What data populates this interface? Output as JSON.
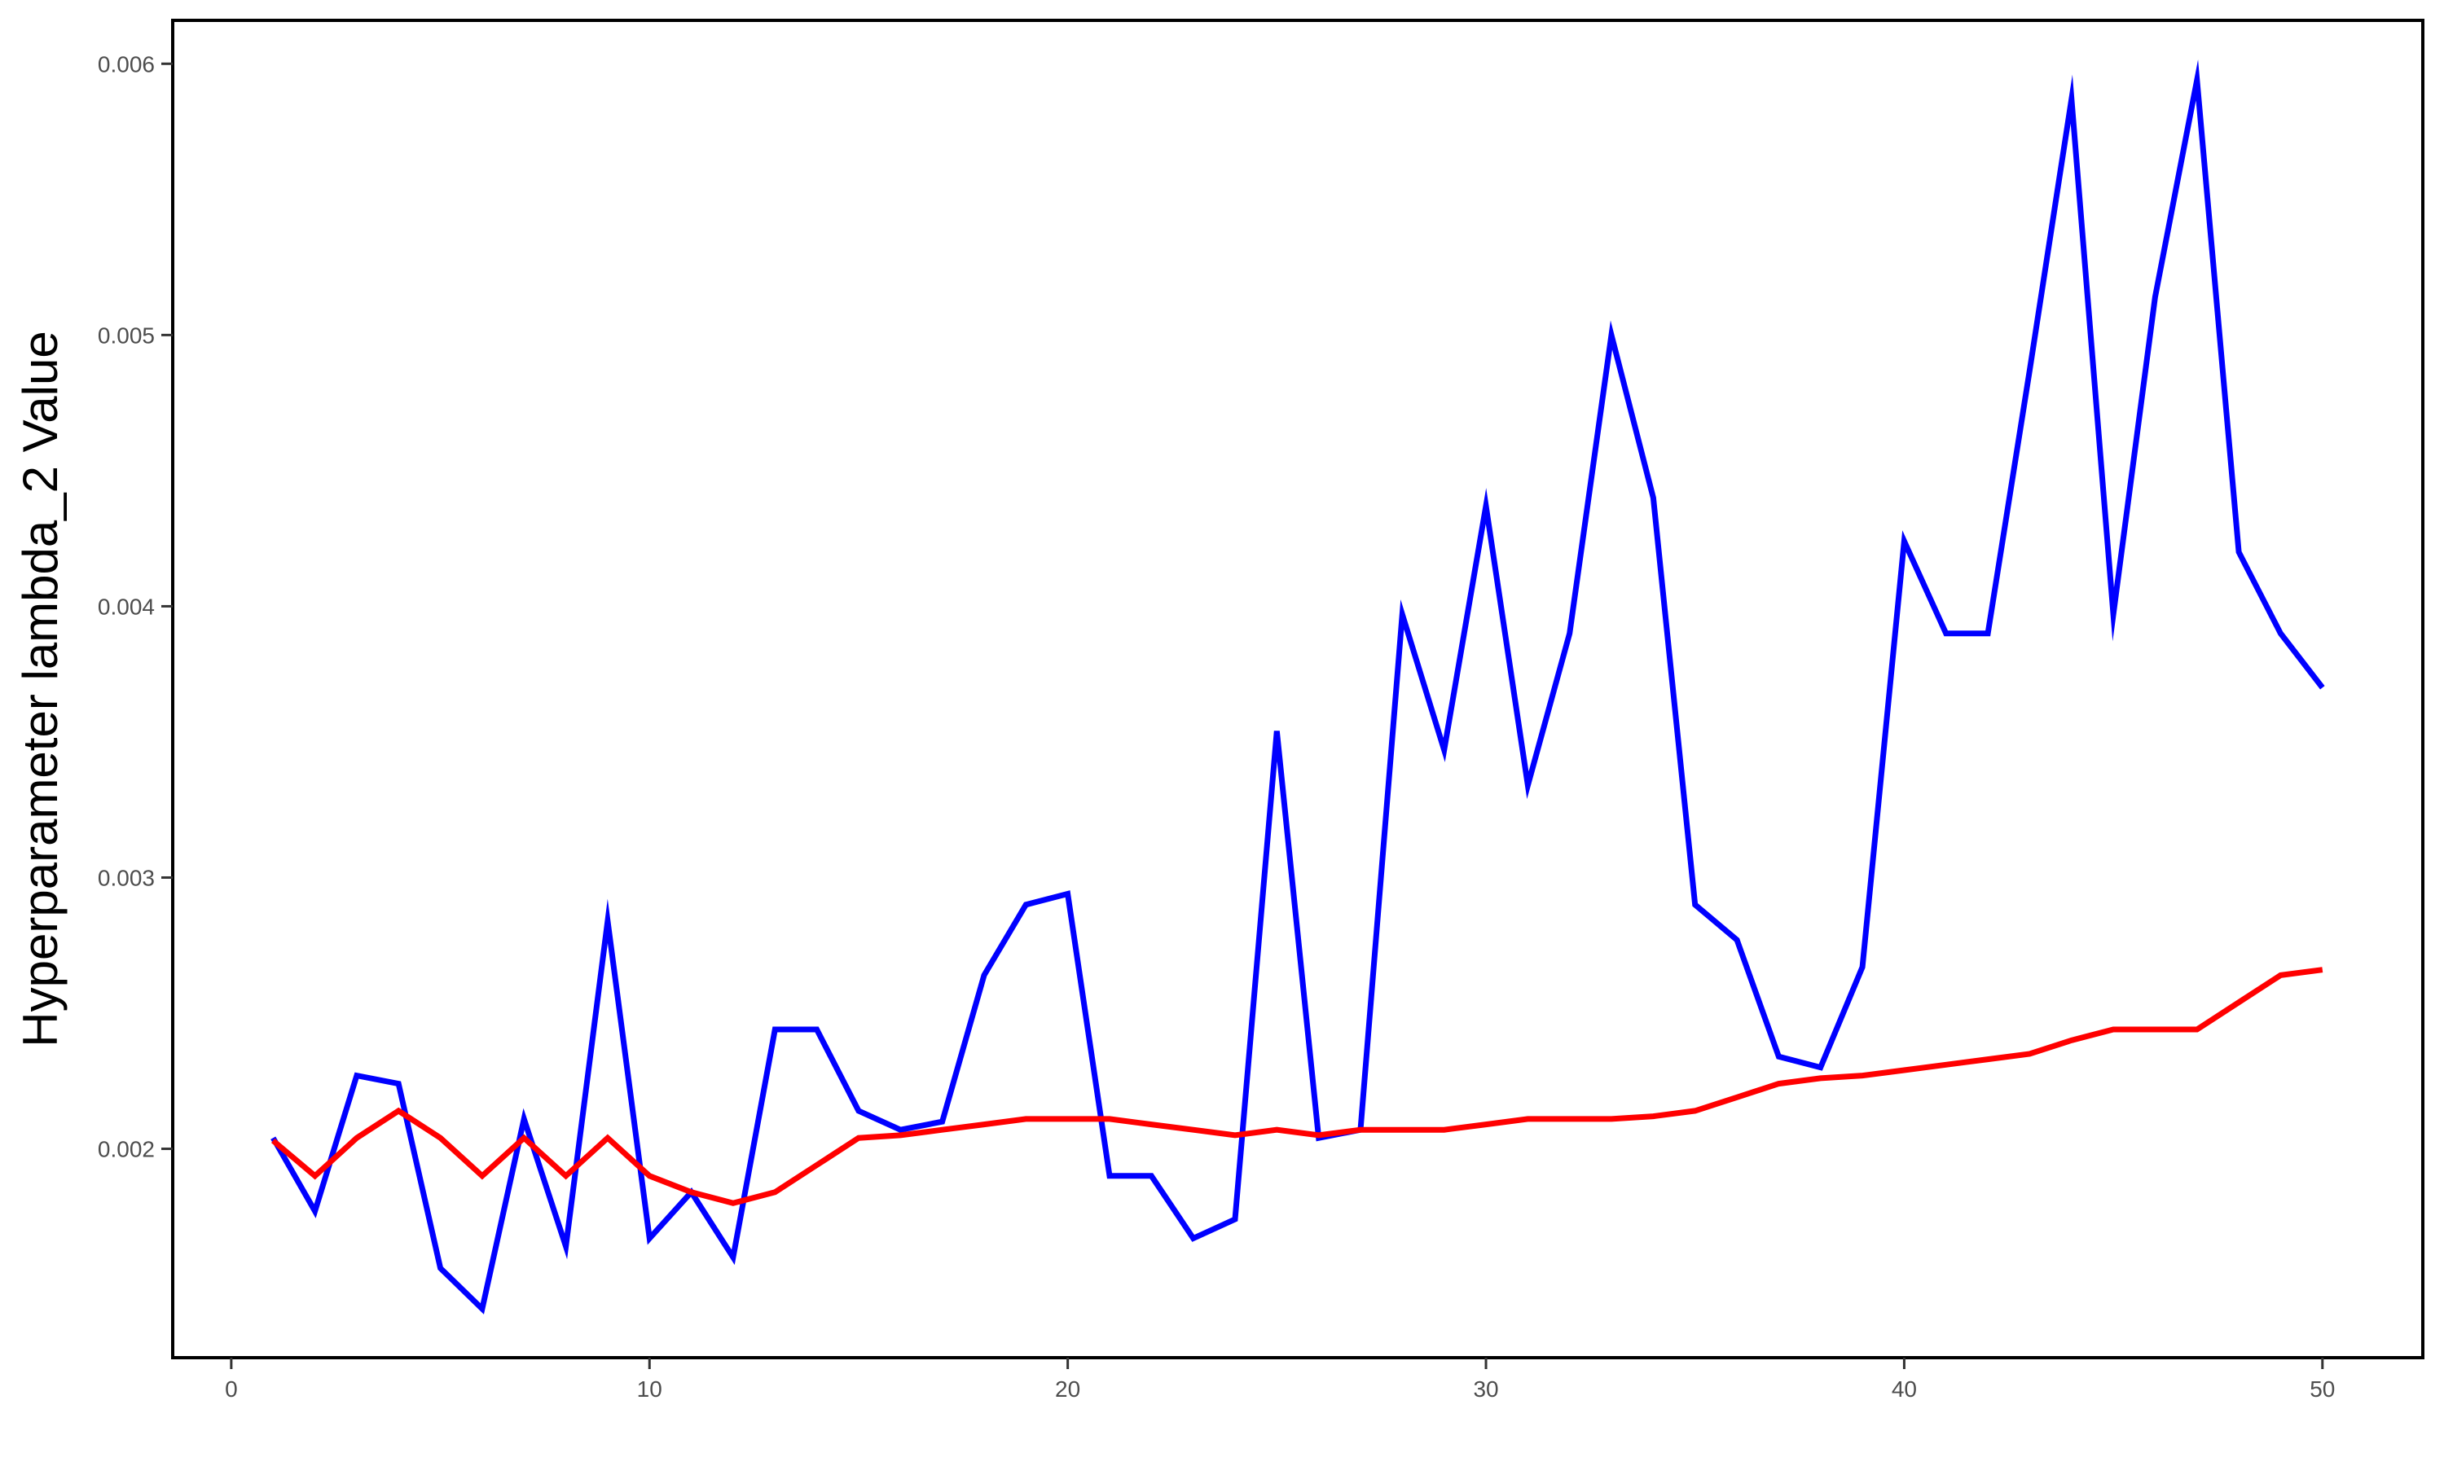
{
  "chart_data": {
    "type": "line",
    "title": "",
    "xlabel": "",
    "ylabel": "Hyperparameter lambda_2 Value",
    "xlim": [
      -1.4,
      52.4
    ],
    "ylim": [
      0.00123,
      0.00616
    ],
    "x_ticks": [
      0,
      10,
      20,
      30,
      40,
      50
    ],
    "x_tick_labels": [
      "0",
      "10",
      "20",
      "30",
      "40",
      "50"
    ],
    "y_ticks": [
      0.002,
      0.003,
      0.004,
      0.005,
      0.006
    ],
    "y_tick_labels": [
      "0.002",
      "0.003",
      "0.004",
      "0.005",
      "0.006"
    ],
    "grid": false,
    "legend": "none",
    "x": [
      1,
      2,
      3,
      4,
      5,
      6,
      7,
      8,
      9,
      10,
      11,
      12,
      13,
      14,
      15,
      16,
      17,
      18,
      19,
      20,
      21,
      22,
      23,
      24,
      25,
      26,
      27,
      28,
      29,
      30,
      31,
      32,
      33,
      34,
      35,
      36,
      37,
      38,
      39,
      40,
      41,
      42,
      43,
      44,
      45,
      46,
      47,
      48,
      49,
      50
    ],
    "series": [
      {
        "color": "#0000ff",
        "values": [
          0.00204,
          0.00177,
          0.00227,
          0.00224,
          0.00156,
          0.00141,
          0.00211,
          0.00164,
          0.00284,
          0.00167,
          0.00184,
          0.0016,
          0.00244,
          0.00244,
          0.00214,
          0.00207,
          0.0021,
          0.00264,
          0.0029,
          0.00294,
          0.0019,
          0.0019,
          0.00167,
          0.00174,
          0.00354,
          0.00204,
          0.00207,
          0.00397,
          0.00347,
          0.00437,
          0.00334,
          0.0039,
          0.005,
          0.0044,
          0.0029,
          0.00277,
          0.00234,
          0.0023,
          0.00267,
          0.00424,
          0.0039,
          0.0039,
          0.00487,
          0.00587,
          0.00397,
          0.00514,
          0.00594,
          0.0042,
          0.0039,
          0.0037
        ]
      },
      {
        "color": "#ff0000",
        "values": [
          0.00203,
          0.0019,
          0.00204,
          0.00214,
          0.00204,
          0.0019,
          0.00204,
          0.0019,
          0.00204,
          0.0019,
          0.00184,
          0.0018,
          0.00184,
          0.00194,
          0.00204,
          0.00205,
          0.00207,
          0.00209,
          0.00211,
          0.00211,
          0.00211,
          0.00209,
          0.00207,
          0.00205,
          0.00207,
          0.00205,
          0.00207,
          0.00207,
          0.00207,
          0.00209,
          0.00211,
          0.00211,
          0.00211,
          0.00212,
          0.00214,
          0.00219,
          0.00224,
          0.00226,
          0.00227,
          0.00229,
          0.00231,
          0.00233,
          0.00235,
          0.0024,
          0.00244,
          0.00244,
          0.00244,
          0.00254,
          0.00264,
          0.00266
        ]
      }
    ]
  }
}
